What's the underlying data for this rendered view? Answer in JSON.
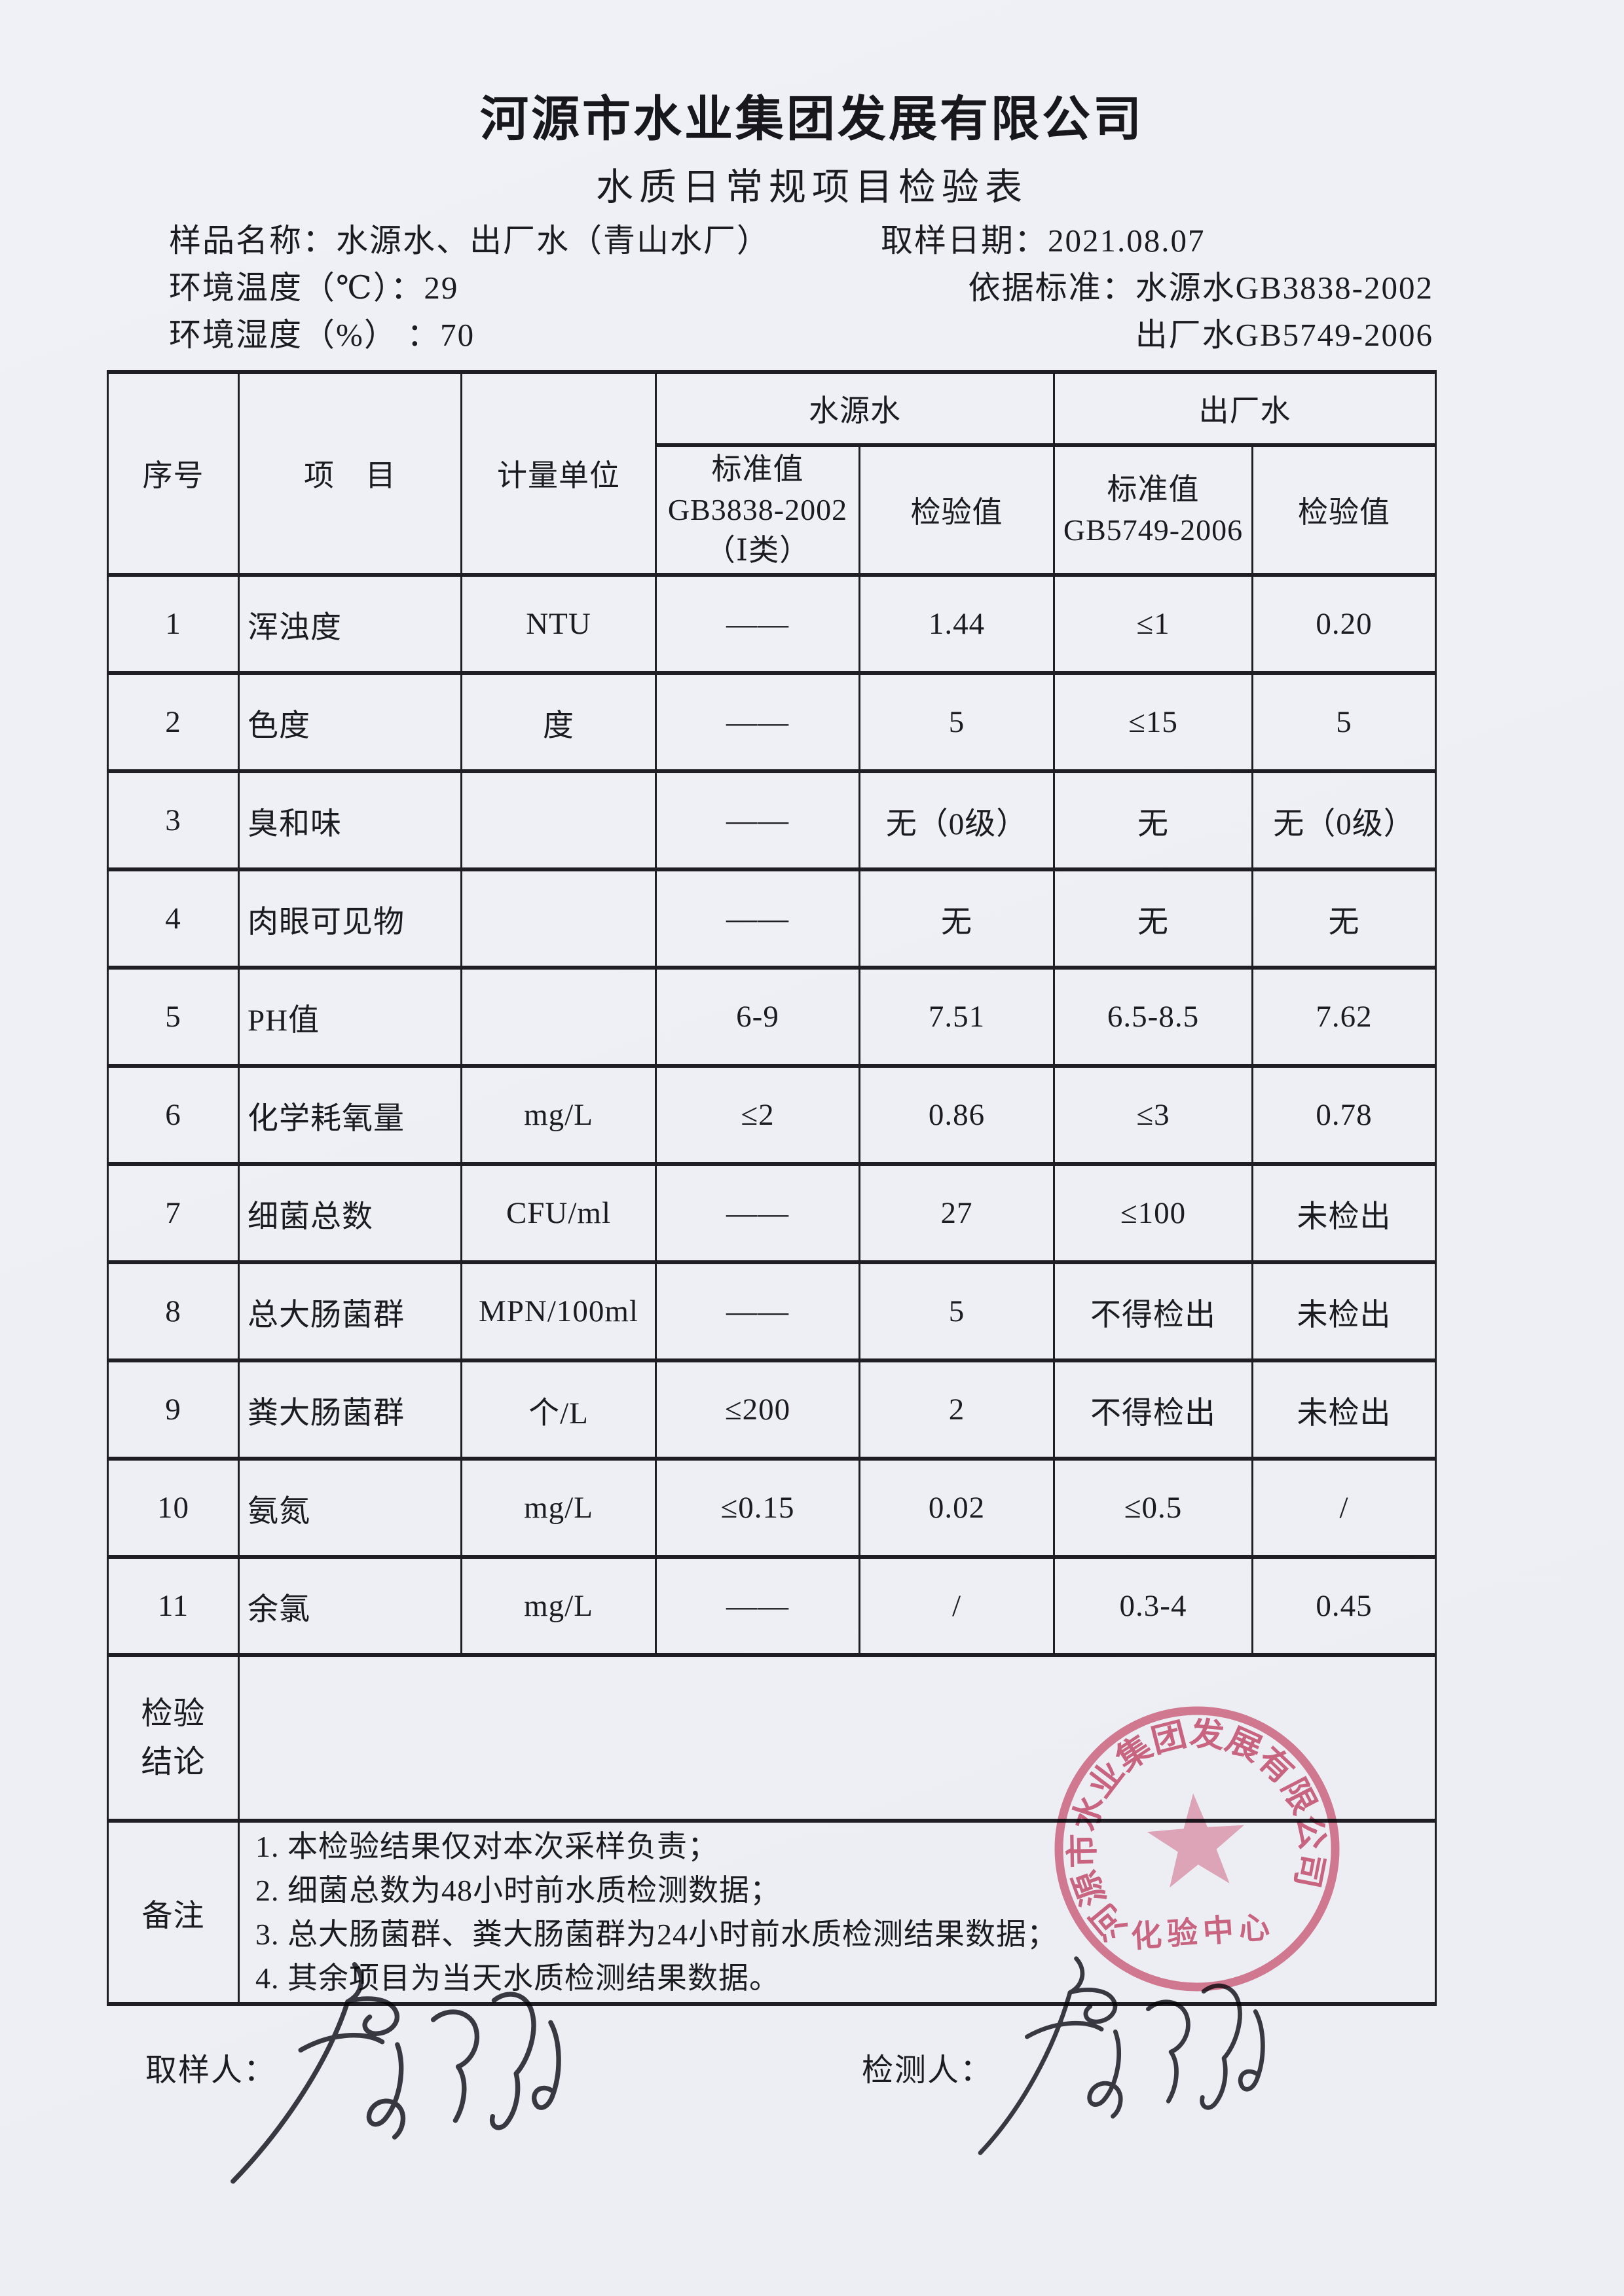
{
  "page": {
    "company": "河源市水业集团发展有限公司",
    "form_title": "水质日常规项目检验表",
    "info": {
      "sample_line": "样品名称：水源水、出厂水（青山水厂）",
      "sampling_date": "取样日期：2021.08.07",
      "env_temp": "环境温度（℃）：29",
      "standard_source": "依据标准：水源水GB3838-2002",
      "env_humidity": "环境湿度（%） ：70",
      "standard_factory": "出厂水GB5749-2006"
    }
  },
  "table": {
    "header": {
      "col_no": "序号",
      "col_item": "项　目",
      "col_unit": "计量单位",
      "group_source": "水源水",
      "group_factory": "出厂水",
      "src_std": [
        "标准值",
        "GB3838-2002",
        "（Ⅰ类）"
      ],
      "src_val": "检验值",
      "fac_std": [
        "标准值",
        "GB5749-2006"
      ],
      "fac_val": "检验值"
    },
    "rows": [
      {
        "no": "1",
        "item": "浑浊度",
        "unit": "NTU",
        "src_std": "——",
        "src_val": "1.44",
        "fac_std": "≤1",
        "fac_val": "0.20"
      },
      {
        "no": "2",
        "item": "色度",
        "unit": "度",
        "src_std": "——",
        "src_val": "5",
        "fac_std": "≤15",
        "fac_val": "5"
      },
      {
        "no": "3",
        "item": "臭和味",
        "unit": "",
        "src_std": "——",
        "src_val": "无（0级）",
        "fac_std": "无",
        "fac_val": "无（0级）"
      },
      {
        "no": "4",
        "item": "肉眼可见物",
        "unit": "",
        "src_std": "——",
        "src_val": "无",
        "fac_std": "无",
        "fac_val": "无"
      },
      {
        "no": "5",
        "item": "PH值",
        "unit": "",
        "src_std": "6-9",
        "src_val": "7.51",
        "fac_std": "6.5-8.5",
        "fac_val": "7.62"
      },
      {
        "no": "6",
        "item": "化学耗氧量",
        "unit": "mg/L",
        "src_std": "≤2",
        "src_val": "0.86",
        "fac_std": "≤3",
        "fac_val": "0.78"
      },
      {
        "no": "7",
        "item": "细菌总数",
        "unit": "CFU/ml",
        "src_std": "——",
        "src_val": "27",
        "fac_std": "≤100",
        "fac_val": "未检出"
      },
      {
        "no": "8",
        "item": "总大肠菌群",
        "unit": "MPN/100ml",
        "src_std": "——",
        "src_val": "5",
        "fac_std": "不得检出",
        "fac_val": "未检出"
      },
      {
        "no": "9",
        "item": "粪大肠菌群",
        "unit": "个/L",
        "src_std": "≤200",
        "src_val": "2",
        "fac_std": "不得检出",
        "fac_val": "未检出"
      },
      {
        "no": "10",
        "item": "氨氮",
        "unit": "mg/L",
        "src_std": "≤0.15",
        "src_val": "0.02",
        "fac_std": "≤0.5",
        "fac_val": "/"
      },
      {
        "no": "11",
        "item": "余氯",
        "unit": "mg/L",
        "src_std": "——",
        "src_val": "/",
        "fac_std": "0.3-4",
        "fac_val": "0.45"
      }
    ],
    "conclusion_label": [
      "检验",
      "结论"
    ],
    "conclusion_value": "",
    "remark_label": "备注",
    "remarks": [
      "1. 本检验结果仅对本次采样负责；",
      "2. 细菌总数为48小时前水质检测数据；",
      "3. 总大肠菌群、粪大肠菌群为24小时前水质检测结果数据；",
      "4. 其余项目为当天水质检测结果数据。"
    ]
  },
  "stamp": {
    "ring_text": "河源市水业集团发展有限公司",
    "center_text": "化验中心",
    "color": "#d9677f"
  },
  "signatures": {
    "sampler_label": "取样人：",
    "tester_label": "检测人："
  }
}
